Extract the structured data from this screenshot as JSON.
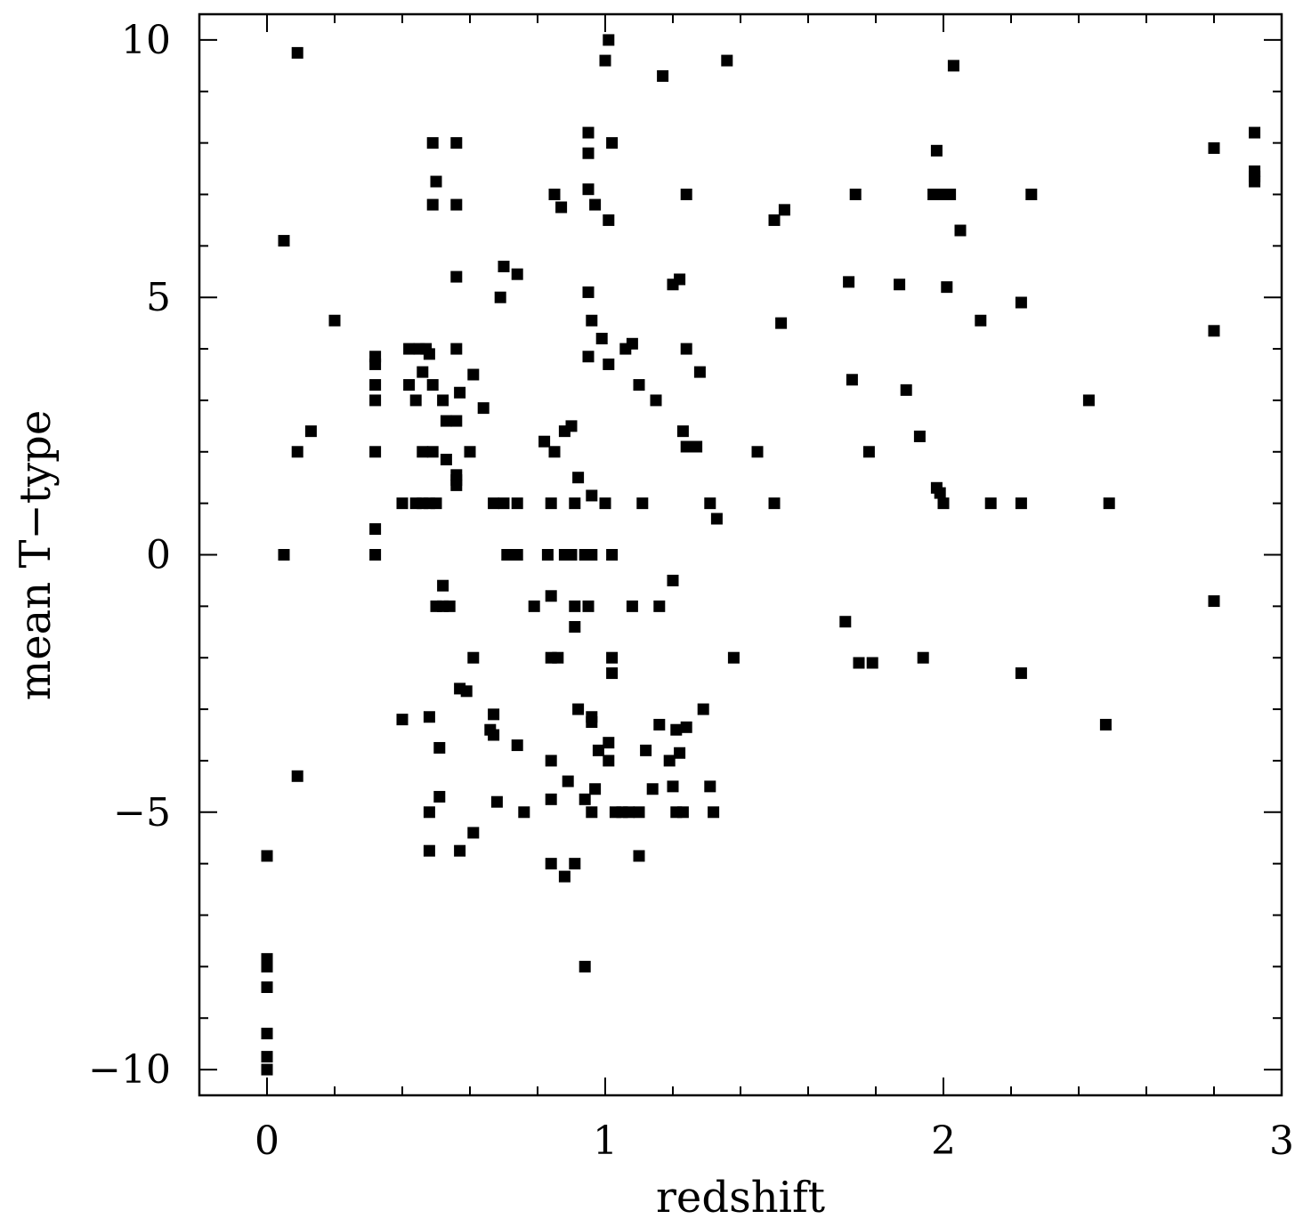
{
  "chart_data": {
    "type": "scatter",
    "title": "",
    "xlabel": "redshift",
    "ylabel": "mean T−type",
    "xlim": [
      -0.2,
      3.0
    ],
    "ylim": [
      -10.5,
      10.5
    ],
    "x_ticks": [
      0,
      1,
      2,
      3
    ],
    "x_tick_labels": [
      "0",
      "1",
      "2",
      "3"
    ],
    "y_ticks": [
      -10,
      -5,
      0,
      5,
      10
    ],
    "y_tick_labels": [
      "−10",
      "−5",
      "0",
      "5",
      "10"
    ],
    "x_minor_step": 0.2,
    "y_minor_step": 1,
    "grid": false,
    "legend": "none",
    "marker": "square",
    "marker_color": "#000000",
    "series": [
      {
        "points": [
          [
            0.0,
            -5.85
          ],
          [
            0.0,
            -7.85
          ],
          [
            0.0,
            -8.0
          ],
          [
            0.0,
            -8.4
          ],
          [
            0.0,
            -9.3
          ],
          [
            0.0,
            -9.75
          ],
          [
            0.0,
            -10.0
          ],
          [
            0.05,
            6.1
          ],
          [
            0.05,
            0.0
          ],
          [
            0.09,
            9.75
          ],
          [
            0.09,
            2.0
          ],
          [
            0.09,
            -4.3
          ],
          [
            0.13,
            2.4
          ],
          [
            0.2,
            4.55
          ],
          [
            0.32,
            3.85
          ],
          [
            0.32,
            3.7
          ],
          [
            0.32,
            3.3
          ],
          [
            0.32,
            3.0
          ],
          [
            0.32,
            2.0
          ],
          [
            0.32,
            0.5
          ],
          [
            0.32,
            0.0
          ],
          [
            0.4,
            1.0
          ],
          [
            0.4,
            -3.2
          ],
          [
            0.42,
            4.0
          ],
          [
            0.42,
            3.3
          ],
          [
            0.44,
            3.0
          ],
          [
            0.44,
            1.0
          ],
          [
            0.45,
            4.0
          ],
          [
            0.46,
            3.55
          ],
          [
            0.46,
            2.0
          ],
          [
            0.46,
            1.0
          ],
          [
            0.47,
            4.0
          ],
          [
            0.48,
            3.9
          ],
          [
            0.48,
            1.0
          ],
          [
            0.48,
            -3.15
          ],
          [
            0.48,
            -5.0
          ],
          [
            0.48,
            -5.75
          ],
          [
            0.49,
            8.0
          ],
          [
            0.49,
            6.8
          ],
          [
            0.49,
            3.3
          ],
          [
            0.49,
            2.0
          ],
          [
            0.5,
            1.0
          ],
          [
            0.5,
            -1.0
          ],
          [
            0.5,
            7.25
          ],
          [
            0.51,
            -4.7
          ],
          [
            0.51,
            -3.75
          ],
          [
            0.52,
            3.0
          ],
          [
            0.52,
            -1.0
          ],
          [
            0.52,
            -0.6
          ],
          [
            0.53,
            1.85
          ],
          [
            0.53,
            2.6
          ],
          [
            0.54,
            -1.0
          ],
          [
            0.56,
            8.0
          ],
          [
            0.56,
            6.8
          ],
          [
            0.56,
            5.4
          ],
          [
            0.56,
            4.0
          ],
          [
            0.56,
            2.6
          ],
          [
            0.56,
            1.55
          ],
          [
            0.56,
            1.45
          ],
          [
            0.56,
            1.35
          ],
          [
            0.57,
            3.15
          ],
          [
            0.57,
            -5.75
          ],
          [
            0.57,
            -2.6
          ],
          [
            0.59,
            -2.65
          ],
          [
            0.6,
            2.0
          ],
          [
            0.61,
            3.5
          ],
          [
            0.61,
            -2.0
          ],
          [
            0.61,
            -5.4
          ],
          [
            0.64,
            2.85
          ],
          [
            0.66,
            -3.4
          ],
          [
            0.67,
            1.0
          ],
          [
            0.67,
            -3.1
          ],
          [
            0.67,
            -3.5
          ],
          [
            0.68,
            -4.8
          ],
          [
            0.69,
            5.0
          ],
          [
            0.7,
            5.6
          ],
          [
            0.7,
            1.0
          ],
          [
            0.71,
            0.0
          ],
          [
            0.73,
            0.0
          ],
          [
            0.74,
            5.45
          ],
          [
            0.74,
            1.0
          ],
          [
            0.74,
            0.0
          ],
          [
            0.74,
            -3.7
          ],
          [
            0.76,
            -5.0
          ],
          [
            0.79,
            -1.0
          ],
          [
            0.82,
            2.2
          ],
          [
            0.83,
            0.0
          ],
          [
            0.84,
            1.0
          ],
          [
            0.84,
            -0.8
          ],
          [
            0.84,
            -2.0
          ],
          [
            0.84,
            -4.0
          ],
          [
            0.84,
            -4.75
          ],
          [
            0.84,
            -6.0
          ],
          [
            0.85,
            7.0
          ],
          [
            0.85,
            2.0
          ],
          [
            0.86,
            -2.0
          ],
          [
            0.87,
            6.75
          ],
          [
            0.88,
            2.4
          ],
          [
            0.88,
            0.0
          ],
          [
            0.88,
            -6.25
          ],
          [
            0.89,
            -4.4
          ],
          [
            0.9,
            2.5
          ],
          [
            0.9,
            0.0
          ],
          [
            0.91,
            1.0
          ],
          [
            0.91,
            -1.0
          ],
          [
            0.91,
            -1.4
          ],
          [
            0.91,
            -6.0
          ],
          [
            0.92,
            1.5
          ],
          [
            0.92,
            -3.0
          ],
          [
            0.94,
            0.0
          ],
          [
            0.94,
            -4.75
          ],
          [
            0.94,
            -8.0
          ],
          [
            0.95,
            8.2
          ],
          [
            0.95,
            7.8
          ],
          [
            0.95,
            7.1
          ],
          [
            0.95,
            5.1
          ],
          [
            0.95,
            3.85
          ],
          [
            0.95,
            -1.0
          ],
          [
            0.96,
            4.55
          ],
          [
            0.96,
            1.15
          ],
          [
            0.96,
            0.0
          ],
          [
            0.96,
            -3.15
          ],
          [
            0.96,
            -3.25
          ],
          [
            0.96,
            -5.0
          ],
          [
            0.97,
            6.8
          ],
          [
            0.97,
            -4.55
          ],
          [
            0.98,
            -3.8
          ],
          [
            0.99,
            4.2
          ],
          [
            1.0,
            9.6
          ],
          [
            1.0,
            1.0
          ],
          [
            1.01,
            10.0
          ],
          [
            1.01,
            6.5
          ],
          [
            1.01,
            3.7
          ],
          [
            1.01,
            -3.65
          ],
          [
            1.01,
            -4.0
          ],
          [
            1.02,
            8.0
          ],
          [
            1.02,
            0.0
          ],
          [
            1.02,
            -2.0
          ],
          [
            1.02,
            -2.3
          ],
          [
            1.03,
            -5.0
          ],
          [
            1.05,
            -5.0
          ],
          [
            1.06,
            4.0
          ],
          [
            1.07,
            -5.0
          ],
          [
            1.08,
            4.1
          ],
          [
            1.08,
            -1.0
          ],
          [
            1.1,
            3.3
          ],
          [
            1.1,
            -5.0
          ],
          [
            1.1,
            -5.85
          ],
          [
            1.11,
            1.0
          ],
          [
            1.12,
            -3.8
          ],
          [
            1.14,
            -4.55
          ],
          [
            1.15,
            3.0
          ],
          [
            1.16,
            -1.0
          ],
          [
            1.16,
            -3.3
          ],
          [
            1.17,
            9.3
          ],
          [
            1.19,
            -4.0
          ],
          [
            1.2,
            5.25
          ],
          [
            1.2,
            -0.5
          ],
          [
            1.2,
            -4.5
          ],
          [
            1.21,
            -3.4
          ],
          [
            1.21,
            -5.0
          ],
          [
            1.22,
            5.35
          ],
          [
            1.22,
            -3.85
          ],
          [
            1.23,
            2.4
          ],
          [
            1.23,
            -5.0
          ],
          [
            1.24,
            7.0
          ],
          [
            1.24,
            4.0
          ],
          [
            1.24,
            2.1
          ],
          [
            1.24,
            -3.35
          ],
          [
            1.27,
            2.1
          ],
          [
            1.28,
            3.55
          ],
          [
            1.29,
            -3.0
          ],
          [
            1.31,
            1.0
          ],
          [
            1.31,
            -4.5
          ],
          [
            1.32,
            -5.0
          ],
          [
            1.33,
            0.7
          ],
          [
            1.36,
            9.6
          ],
          [
            1.38,
            -2.0
          ],
          [
            1.45,
            2.0
          ],
          [
            1.5,
            6.5
          ],
          [
            1.5,
            1.0
          ],
          [
            1.52,
            4.5
          ],
          [
            1.53,
            6.7
          ],
          [
            1.71,
            -1.3
          ],
          [
            1.72,
            5.3
          ],
          [
            1.73,
            3.4
          ],
          [
            1.74,
            7.0
          ],
          [
            1.75,
            -2.1
          ],
          [
            1.78,
            2.0
          ],
          [
            1.79,
            -2.1
          ],
          [
            1.87,
            5.25
          ],
          [
            1.89,
            3.2
          ],
          [
            1.93,
            2.3
          ],
          [
            1.94,
            -2.0
          ],
          [
            1.97,
            7.0
          ],
          [
            1.98,
            7.85
          ],
          [
            1.98,
            1.3
          ],
          [
            1.99,
            7.0
          ],
          [
            1.99,
            1.2
          ],
          [
            2.0,
            1.0
          ],
          [
            2.01,
            5.2
          ],
          [
            2.02,
            7.0
          ],
          [
            2.03,
            9.5
          ],
          [
            2.05,
            6.3
          ],
          [
            2.11,
            4.55
          ],
          [
            2.14,
            1.0
          ],
          [
            2.23,
            4.9
          ],
          [
            2.23,
            1.0
          ],
          [
            2.23,
            -2.3
          ],
          [
            2.26,
            7.0
          ],
          [
            2.43,
            3.0
          ],
          [
            2.48,
            -3.3
          ],
          [
            2.49,
            1.0
          ],
          [
            2.8,
            7.9
          ],
          [
            2.8,
            4.35
          ],
          [
            2.8,
            -0.9
          ],
          [
            2.92,
            8.2
          ],
          [
            2.92,
            7.45
          ],
          [
            2.92,
            7.35
          ],
          [
            2.92,
            7.25
          ]
        ]
      }
    ]
  }
}
